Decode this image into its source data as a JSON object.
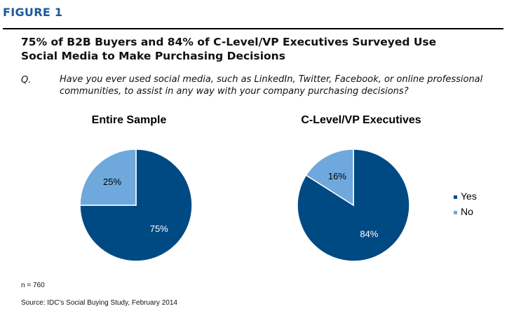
{
  "figure_label": "FIGURE 1",
  "title_line1": "75% of B2B Buyers and 84% of C-Level/VP Executives Surveyed Use",
  "title_line2": "Social Media to Make Purchasing Decisions",
  "question_label": "Q.",
  "question_text": "Have you ever used social media, such as LinkedIn, Twitter, Facebook, or online professional communities, to assist in any way with your company purchasing decisions?",
  "n_note": "n = 760",
  "source_note": "Source: IDC's Social Buying Study, February 2014",
  "colors": {
    "yes": "#004a84",
    "no": "#6fa8dc",
    "figure_label": "#1a5a9a"
  },
  "chart_data": [
    {
      "type": "pie",
      "title": "Entire Sample",
      "slices": [
        {
          "label": "Yes",
          "value": 75,
          "display": "75%"
        },
        {
          "label": "No",
          "value": 25,
          "display": "25%"
        }
      ]
    },
    {
      "type": "pie",
      "title": "C-Level/VP Executives",
      "slices": [
        {
          "label": "Yes",
          "value": 84,
          "display": "84%"
        },
        {
          "label": "No",
          "value": 16,
          "display": "16%"
        }
      ]
    }
  ],
  "legend": {
    "placement": "right",
    "items": [
      {
        "label": "Yes",
        "color": "#004a84"
      },
      {
        "label": "No",
        "color": "#6fa8dc"
      }
    ]
  }
}
